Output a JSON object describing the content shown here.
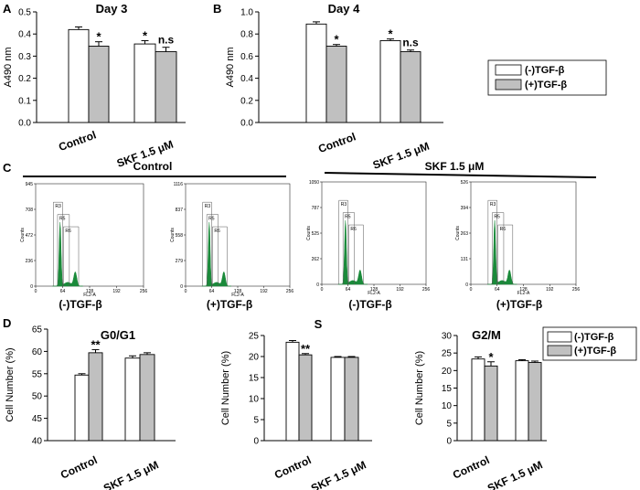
{
  "colors": {
    "white_bar": "#ffffff",
    "gray_bar": "#c0c0c0",
    "histogram": "#1a8a3a",
    "axis": "#000000"
  },
  "panel_labels": [
    "A",
    "B",
    "C",
    "D"
  ],
  "legend": [
    "(-)TGF-β",
    "(+)TGF-β"
  ],
  "chart_data": [
    {
      "type": "bar",
      "panel": "A",
      "title": "Day 3",
      "ylabel": "A490 nm",
      "categories": [
        "Control",
        "SKF 1.5 μM"
      ],
      "ylim": [
        0,
        0.5
      ],
      "yticks": [
        "0.0",
        "0.1",
        "0.2",
        "0.3",
        "0.4",
        "0.5"
      ],
      "series": [
        {
          "name": "(-)TGF-β",
          "values": [
            0.42,
            0.355
          ],
          "errors": [
            0.012,
            0.015
          ]
        },
        {
          "name": "(+)TGF-β",
          "values": [
            0.345,
            0.32
          ],
          "errors": [
            0.02,
            0.02
          ]
        }
      ],
      "annotations": [
        "*",
        "*",
        "n.s"
      ]
    },
    {
      "type": "bar",
      "panel": "B",
      "title": "Day 4",
      "ylabel": "A490 nm",
      "categories": [
        "Control",
        "SKF 1.5 μM"
      ],
      "ylim": [
        0,
        1.0
      ],
      "yticks": [
        "0.0",
        "0.2",
        "0.4",
        "0.6",
        "0.8",
        "1.0"
      ],
      "series": [
        {
          "name": "(-)TGF-β",
          "values": [
            0.89,
            0.74
          ],
          "errors": [
            0.02,
            0.015
          ]
        },
        {
          "name": "(+)TGF-β",
          "values": [
            0.69,
            0.64
          ],
          "errors": [
            0.015,
            0.015
          ]
        }
      ],
      "annotations": [
        "*",
        "*",
        "n.s"
      ]
    },
    {
      "type": "bar",
      "panel": "D",
      "title": "G0/G1",
      "ylabel": "Cell Number (%)",
      "categories": [
        "Control",
        "SKF 1.5 μM"
      ],
      "ylim": [
        40,
        65
      ],
      "yticks": [
        "40",
        "45",
        "50",
        "55",
        "60",
        "65"
      ],
      "series": [
        {
          "name": "(-)TGF-β",
          "values": [
            54.7,
            58.5
          ],
          "errors": [
            0.3,
            0.5
          ]
        },
        {
          "name": "(+)TGF-β",
          "values": [
            59.7,
            59.3
          ],
          "errors": [
            0.7,
            0.4
          ]
        }
      ],
      "annotations": [
        "**"
      ]
    },
    {
      "type": "bar",
      "panel": "D",
      "title": "S",
      "ylabel": "Cell Number (%)",
      "categories": [
        "Control",
        "SKF 1.5 μM"
      ],
      "ylim": [
        0,
        25
      ],
      "yticks": [
        "0",
        "5",
        "10",
        "15",
        "20",
        "25"
      ],
      "series": [
        {
          "name": "(-)TGF-β",
          "values": [
            23.4,
            19.8
          ],
          "errors": [
            0.4,
            0.2
          ]
        },
        {
          "name": "(+)TGF-β",
          "values": [
            20.4,
            19.8
          ],
          "errors": [
            0.3,
            0.2
          ]
        }
      ],
      "annotations": [
        "**"
      ]
    },
    {
      "type": "bar",
      "panel": "D",
      "title": "G2/M",
      "ylabel": "Cell Number (%)",
      "categories": [
        "Control",
        "SKF 1.5 μM"
      ],
      "ylim": [
        0,
        30
      ],
      "yticks": [
        "0",
        "5",
        "10",
        "15",
        "20",
        "25",
        "30"
      ],
      "series": [
        {
          "name": "(-)TGF-β",
          "values": [
            23.3,
            22.8
          ],
          "errors": [
            0.6,
            0.3
          ]
        },
        {
          "name": "(+)TGF-β",
          "values": [
            21.3,
            22.3
          ],
          "errors": [
            1.2,
            0.4
          ]
        }
      ],
      "annotations": [
        "*"
      ]
    }
  ],
  "flow_cytometry": {
    "panel": "C",
    "groups": [
      "Control",
      "SKF 1.5 μM"
    ],
    "xlabel": "FL2-A",
    "ylabel": "Counts",
    "xticks": [
      "0",
      "64",
      "128",
      "192",
      "256"
    ],
    "gates": [
      "R3",
      "R5",
      "R6"
    ],
    "histograms": [
      {
        "caption": "(-)TGF-β",
        "ymax": 945,
        "yticks": [
          "0",
          "236",
          "472",
          "708",
          "945"
        ]
      },
      {
        "caption": "(+)TGF-β",
        "ymax": 1116,
        "yticks": [
          "0",
          "279",
          "558",
          "837",
          "1116"
        ]
      },
      {
        "caption": "(-)TGF-β",
        "ymax": 1050,
        "yticks": [
          "0",
          "262",
          "525",
          "787",
          "1050"
        ]
      },
      {
        "caption": "(+)TGF-β",
        "ymax": 526,
        "yticks": [
          "0",
          "131",
          "263",
          "394",
          "526"
        ]
      }
    ]
  }
}
